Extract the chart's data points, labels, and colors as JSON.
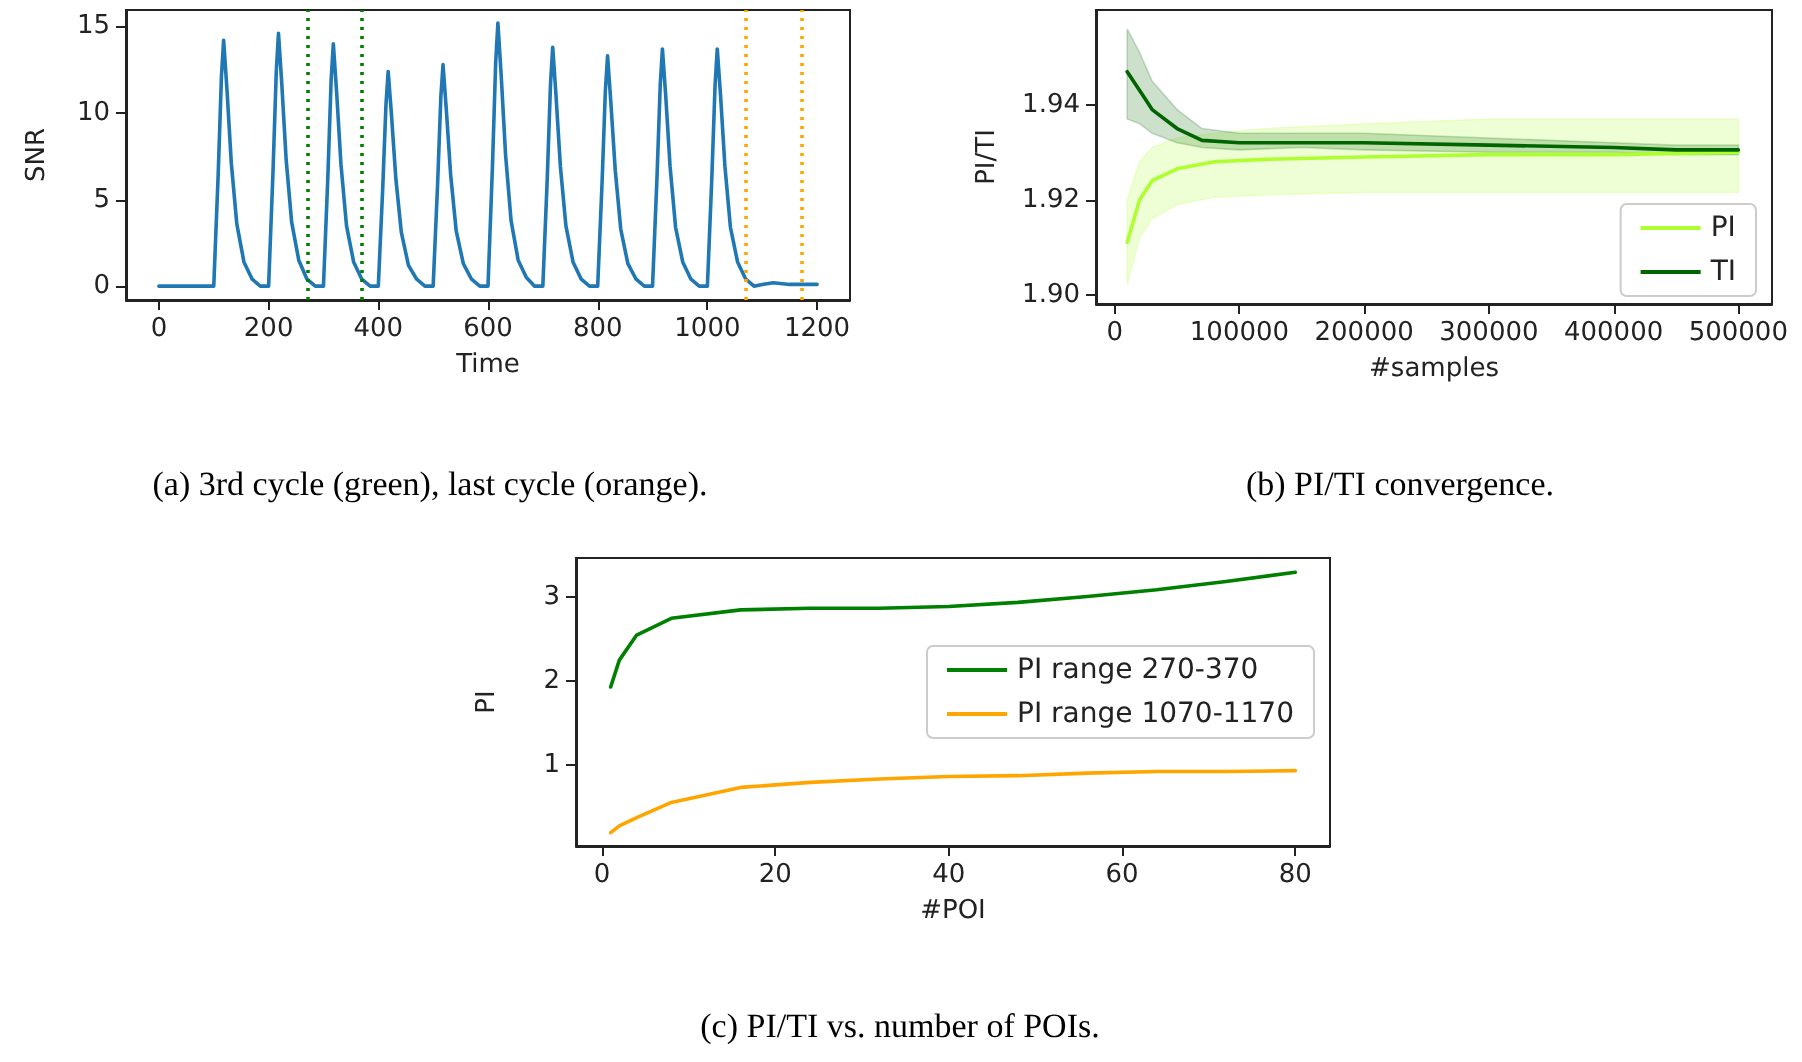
{
  "chart_data": [
    {
      "type": "line",
      "xlabel": "Time",
      "ylabel": "SNR",
      "xlim": [
        -60,
        1260
      ],
      "xticks": [
        0,
        200,
        400,
        600,
        800,
        1000,
        1200
      ],
      "ylim": [
        -0.8,
        15.95
      ],
      "yticks": [
        0,
        5,
        10,
        15
      ],
      "grid": false,
      "legend": false,
      "marker": "none",
      "series": [
        {
          "color": "#1f77b4",
          "x": [
            0,
            100,
            108,
            114,
            118,
            124,
            132,
            142,
            155,
            170,
            185,
            200,
            208,
            214,
            218,
            224,
            232,
            242,
            255,
            270,
            285,
            300,
            308,
            314,
            318,
            324,
            332,
            342,
            355,
            370,
            385,
            400,
            408,
            414,
            418,
            424,
            432,
            442,
            455,
            470,
            485,
            500,
            508,
            514,
            518,
            524,
            532,
            542,
            555,
            570,
            585,
            600,
            608,
            614,
            618,
            624,
            632,
            642,
            655,
            670,
            685,
            700,
            708,
            714,
            718,
            724,
            732,
            742,
            755,
            770,
            785,
            800,
            808,
            814,
            818,
            824,
            832,
            842,
            855,
            870,
            885,
            900,
            908,
            914,
            918,
            924,
            932,
            942,
            955,
            970,
            985,
            1000,
            1008,
            1014,
            1018,
            1024,
            1032,
            1042,
            1055,
            1070,
            1085,
            1100,
            1120,
            1150,
            1200
          ],
          "values": [
            0,
            0,
            6.4,
            12.1,
            14.2,
            11.4,
            7.1,
            3.6,
            1.4,
            0.4,
            0,
            0,
            6.6,
            12.4,
            14.6,
            11.7,
            7.3,
            3.7,
            1.5,
            0.4,
            0,
            0,
            6.3,
            11.9,
            14.0,
            11.2,
            7.0,
            3.5,
            1.4,
            0.4,
            0,
            0,
            5.6,
            10.5,
            12.4,
            9.9,
            6.2,
            3.1,
            1.2,
            0.4,
            0,
            0,
            5.8,
            10.9,
            12.8,
            10.2,
            6.4,
            3.2,
            1.3,
            0.4,
            0,
            0,
            6.8,
            12.9,
            15.2,
            12.2,
            7.6,
            3.8,
            1.5,
            0.5,
            0,
            0,
            6.2,
            11.7,
            13.8,
            11.0,
            6.9,
            3.5,
            1.4,
            0.4,
            0,
            0,
            6.0,
            11.3,
            13.3,
            10.6,
            6.7,
            3.3,
            1.3,
            0.4,
            0,
            0,
            6.2,
            11.6,
            13.7,
            11.0,
            6.9,
            3.4,
            1.4,
            0.4,
            0,
            0,
            6.2,
            11.6,
            13.7,
            11.0,
            6.9,
            3.4,
            1.4,
            0.4,
            0,
            0.1,
            0.2,
            0.1,
            0.1
          ]
        }
      ],
      "ref_lines": [
        {
          "axis": "x",
          "value": 270,
          "color": "#008000",
          "line_style": "dotted"
        },
        {
          "axis": "x",
          "value": 370,
          "color": "#008000",
          "line_style": "dotted"
        },
        {
          "axis": "x",
          "value": 1070,
          "color": "#ffa500",
          "line_style": "dotted"
        },
        {
          "axis": "x",
          "value": 1170,
          "color": "#ffa500",
          "line_style": "dotted"
        }
      ],
      "annotations": [
        "(a) 3rd cycle (green), last cycle (orange)."
      ]
    },
    {
      "type": "line",
      "xlabel": "#samples",
      "ylabel": "PI/TI",
      "xlim": [
        -15000,
        527000
      ],
      "xticks": [
        0,
        100000,
        200000,
        300000,
        400000,
        500000
      ],
      "ylim": [
        1.898,
        1.96
      ],
      "yticks": [
        {
          "value": 1.9,
          "label": "1.90"
        },
        1.92,
        1.94
      ],
      "grid": false,
      "legend": "bottom right",
      "marker": "none",
      "series": [
        {
          "name": "PI",
          "color": "#adff2f",
          "x": [
            10000,
            20000,
            30000,
            50000,
            80000,
            120000,
            200000,
            300000,
            400000,
            500000
          ],
          "values": [
            1.911,
            1.92,
            1.924,
            1.9265,
            1.928,
            1.9285,
            1.929,
            1.9295,
            1.9295,
            1.93
          ],
          "lower": [
            1.902,
            1.912,
            1.916,
            1.919,
            1.9205,
            1.921,
            1.9215,
            1.9215,
            1.9215,
            1.9215
          ],
          "upper": [
            1.92,
            1.928,
            1.931,
            1.933,
            1.934,
            1.935,
            1.936,
            1.937,
            1.937,
            1.937
          ]
        },
        {
          "name": "TI",
          "color": "#006400",
          "x": [
            10000,
            20000,
            30000,
            50000,
            70000,
            100000,
            150000,
            200000,
            300000,
            400000,
            450000,
            500000
          ],
          "values": [
            1.947,
            1.943,
            1.939,
            1.935,
            1.9325,
            1.932,
            1.932,
            1.932,
            1.9315,
            1.931,
            1.9305,
            1.9305
          ],
          "lower": [
            1.937,
            1.936,
            1.934,
            1.932,
            1.931,
            1.9305,
            1.931,
            1.9305,
            1.93,
            1.93,
            1.9295,
            1.9295
          ],
          "upper": [
            1.956,
            1.951,
            1.945,
            1.939,
            1.935,
            1.934,
            1.934,
            1.934,
            1.933,
            1.932,
            1.9315,
            1.9315
          ]
        }
      ],
      "annotations": [
        "(b) PI/TI convergence."
      ]
    },
    {
      "type": "line",
      "xlabel": "#POI",
      "ylabel": "PI",
      "xlim": [
        -3,
        84
      ],
      "xticks": [
        0,
        20,
        40,
        60,
        80
      ],
      "ylim": [
        0.03,
        3.47
      ],
      "yticks": [
        1,
        2,
        3
      ],
      "grid": false,
      "legend": "center right",
      "marker": "none",
      "series": [
        {
          "name": "PI range 270-370",
          "color": "#008000",
          "x": [
            1,
            2,
            4,
            8,
            16,
            24,
            32,
            40,
            48,
            56,
            64,
            72,
            80
          ],
          "values": [
            1.93,
            2.25,
            2.55,
            2.75,
            2.85,
            2.87,
            2.87,
            2.89,
            2.94,
            3.01,
            3.09,
            3.19,
            3.3
          ]
        },
        {
          "name": "PI range 1070-1170",
          "color": "#ffa500",
          "x": [
            1,
            2,
            4,
            8,
            16,
            24,
            32,
            40,
            48,
            56,
            64,
            72,
            80
          ],
          "values": [
            0.19,
            0.27,
            0.37,
            0.55,
            0.73,
            0.79,
            0.83,
            0.86,
            0.87,
            0.9,
            0.92,
            0.92,
            0.93
          ]
        }
      ],
      "annotations": [
        "(c) PI/TI vs. number of POIs."
      ]
    }
  ]
}
